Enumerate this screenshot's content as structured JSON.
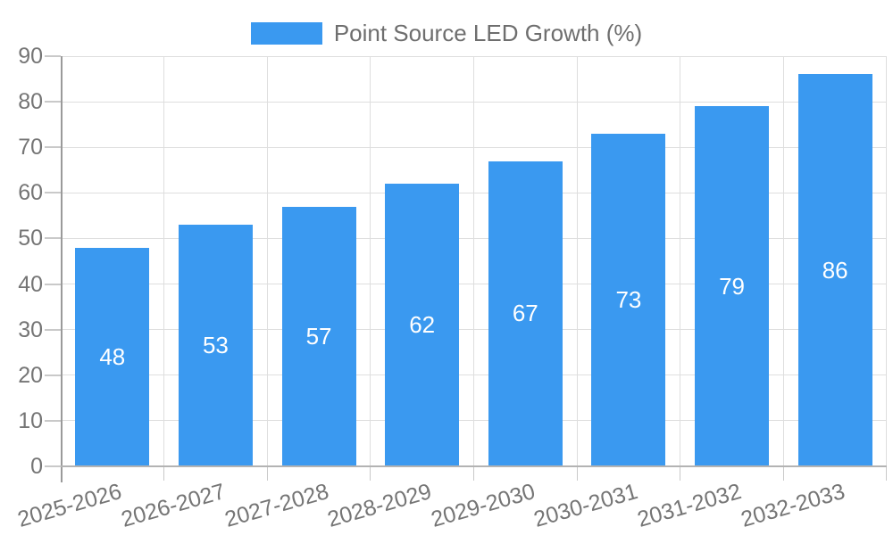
{
  "chart_data": {
    "type": "bar",
    "title": "",
    "legend": {
      "label": "Point Source LED Growth (%)",
      "position": "top"
    },
    "categories": [
      "2025-2026",
      "2026-2027",
      "2027-2028",
      "2028-2029",
      "2029-2030",
      "2030-2031",
      "2031-2032",
      "2032-2033"
    ],
    "series": [
      {
        "name": "Point Source LED Growth (%)",
        "values": [
          48,
          53,
          57,
          62,
          67,
          73,
          79,
          86
        ]
      }
    ],
    "bar_value_labels": [
      "48",
      "53",
      "57",
      "62",
      "67",
      "73",
      "79",
      "86"
    ],
    "xlabel": "",
    "ylabel": "",
    "ylim": [
      0,
      90
    ],
    "yticks": [
      0,
      10,
      20,
      30,
      40,
      50,
      60,
      70,
      80,
      90
    ],
    "grid": true,
    "legend_position": "top"
  },
  "colors": {
    "bar": "#3a99f0",
    "bar_label": "#ffffff",
    "gridline": "#dedede",
    "tick": "#c9c9c9",
    "y_axis_line": "#9a9a9a",
    "x_baseline": "#b3b3b3",
    "axis_text": "#757575",
    "legend_text": "#6e6e6e",
    "background": "#ffffff"
  }
}
